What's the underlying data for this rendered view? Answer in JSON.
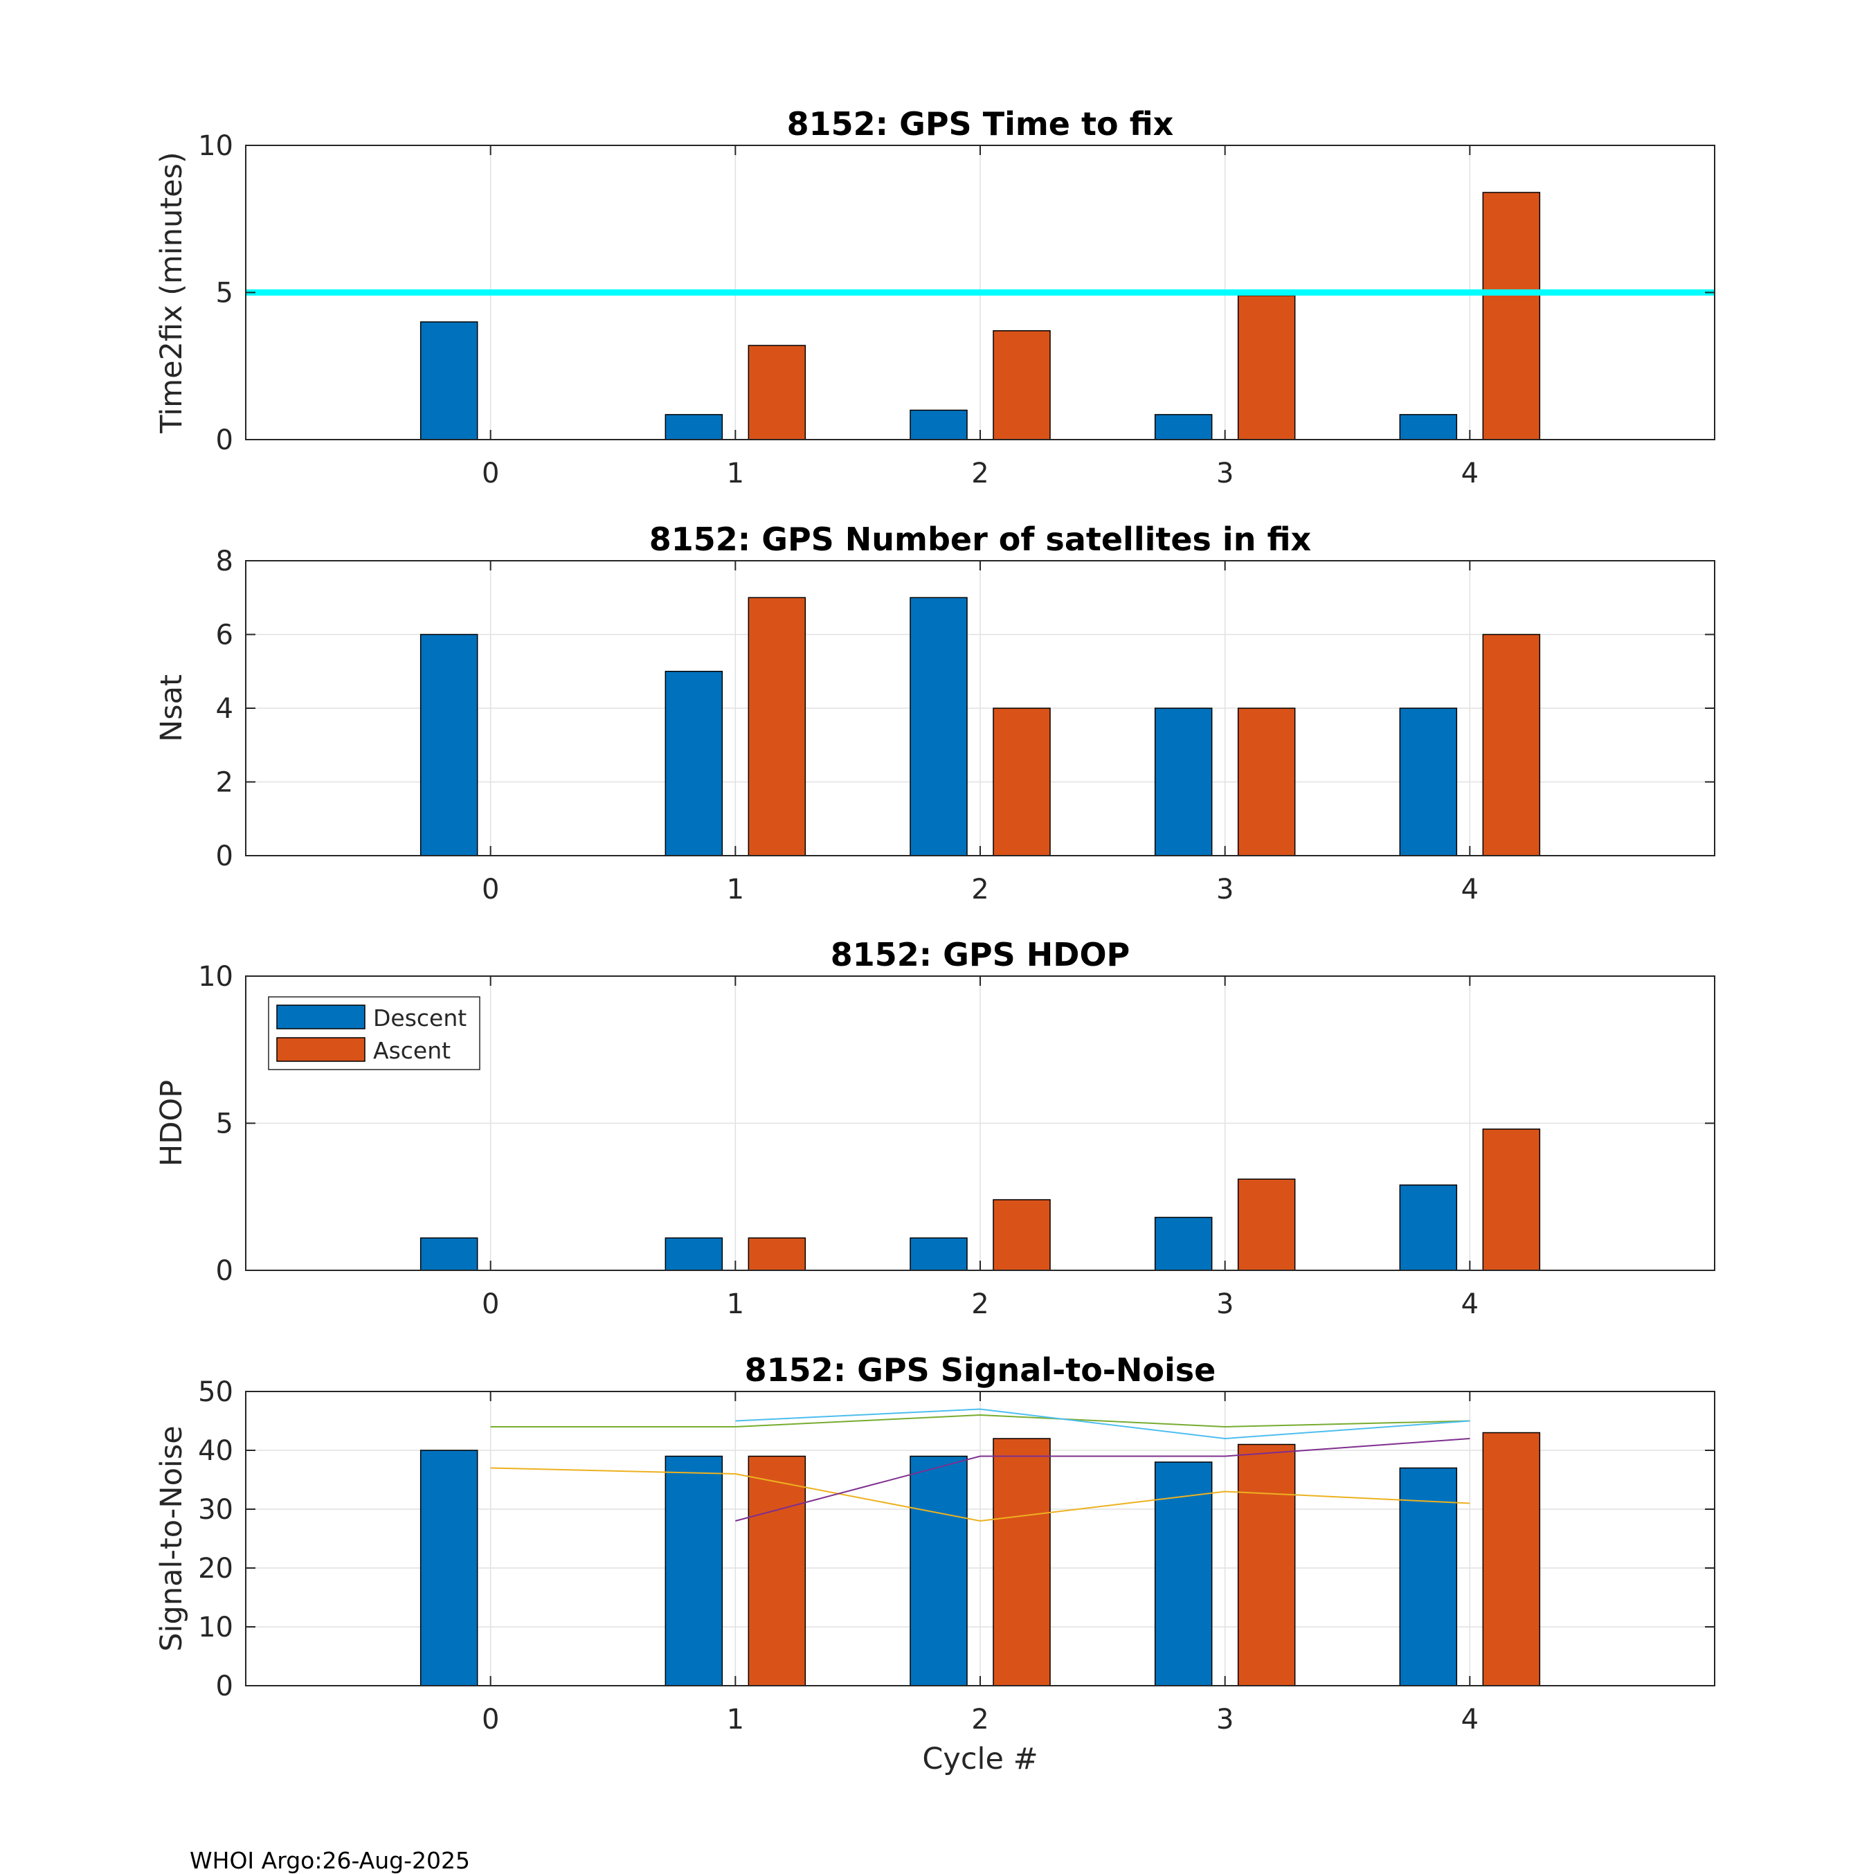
{
  "footer": "WHOI Argo:26-Aug-2025",
  "legend": {
    "descent": "Descent",
    "ascent": "Ascent"
  },
  "colors": {
    "descent": "#0072BD",
    "ascent": "#D95319",
    "threshold": "#00FFFF",
    "snr_lines": [
      "#EDB120",
      "#7E2F8E",
      "#77AC30",
      "#4DBEEE"
    ]
  },
  "chart_data": [
    {
      "type": "bar",
      "title": "8152: GPS Time to fix",
      "ylabel": "Time2fix (minutes)",
      "xlabel": "",
      "ylim": [
        0,
        10
      ],
      "xlim": [
        -1,
        5
      ],
      "yticks": [
        0,
        5,
        10
      ],
      "categories": [
        0,
        1,
        2,
        3,
        4
      ],
      "series": [
        {
          "name": "Descent",
          "values": [
            4,
            0.85,
            1.0,
            0.85,
            0.85
          ]
        },
        {
          "name": "Ascent",
          "values": [
            null,
            3.2,
            3.7,
            4.9,
            8.4
          ]
        }
      ],
      "reference_line": {
        "y": 5,
        "color": "#00FFFF"
      },
      "grid": true
    },
    {
      "type": "bar",
      "title": "8152: GPS Number of satellites in fix",
      "ylabel": "Nsat",
      "xlabel": "",
      "ylim": [
        0,
        8
      ],
      "xlim": [
        -1,
        5
      ],
      "yticks": [
        0,
        2,
        4,
        6,
        8
      ],
      "categories": [
        0,
        1,
        2,
        3,
        4
      ],
      "series": [
        {
          "name": "Descent",
          "values": [
            6,
            5,
            7,
            4,
            4
          ]
        },
        {
          "name": "Ascent",
          "values": [
            null,
            7,
            4,
            4,
            6
          ]
        }
      ],
      "grid": true
    },
    {
      "type": "bar",
      "title": "8152: GPS HDOP",
      "ylabel": "HDOP",
      "xlabel": "",
      "ylim": [
        0,
        10
      ],
      "xlim": [
        -1,
        5
      ],
      "yticks": [
        0,
        5,
        10
      ],
      "categories": [
        0,
        1,
        2,
        3,
        4
      ],
      "series": [
        {
          "name": "Descent",
          "values": [
            1.1,
            1.1,
            1.1,
            1.8,
            2.9
          ]
        },
        {
          "name": "Ascent",
          "values": [
            null,
            1.1,
            2.4,
            3.1,
            4.8
          ]
        }
      ],
      "legend": {
        "entries": [
          "Descent",
          "Ascent"
        ],
        "location": "top-left"
      },
      "grid": true
    },
    {
      "type": "bar",
      "title": "8152: GPS Signal-to-Noise",
      "ylabel": "Signal-to-Noise",
      "xlabel": "Cycle #",
      "ylim": [
        0,
        50
      ],
      "xlim": [
        -1,
        5
      ],
      "yticks": [
        0,
        10,
        20,
        30,
        40,
        50
      ],
      "categories": [
        0,
        1,
        2,
        3,
        4
      ],
      "series": [
        {
          "name": "Descent",
          "values": [
            40,
            39,
            39,
            38,
            37
          ]
        },
        {
          "name": "Ascent",
          "values": [
            null,
            39,
            42,
            41,
            43
          ]
        }
      ],
      "lines": [
        {
          "x": [
            0,
            1,
            2,
            3,
            4
          ],
          "y": [
            37,
            36,
            28,
            33,
            31
          ],
          "color": "#EDB120"
        },
        {
          "x": [
            1,
            2,
            3,
            4
          ],
          "y": [
            28,
            39,
            39,
            42
          ],
          "color": "#7E2F8E"
        },
        {
          "x": [
            0,
            1,
            2,
            3,
            4
          ],
          "y": [
            44,
            44,
            46,
            44,
            45
          ],
          "color": "#77AC30"
        },
        {
          "x": [
            1,
            2,
            3,
            4
          ],
          "y": [
            45,
            47,
            42,
            45
          ],
          "color": "#4DBEEE"
        }
      ],
      "grid": true
    }
  ]
}
